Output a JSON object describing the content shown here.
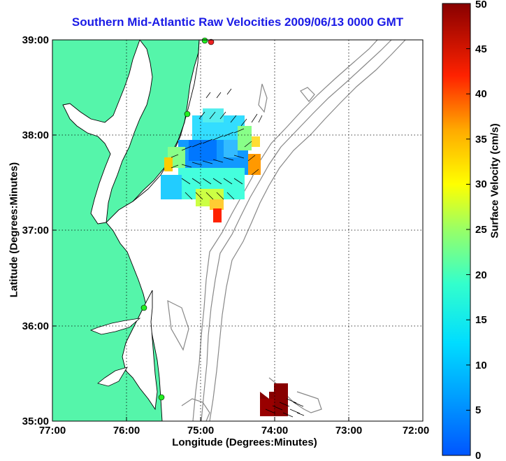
{
  "title": "Southern Mid-Atlantic Raw Velocities 2009/06/13 0000 GMT",
  "axes": {
    "xlabel": "Longitude (Degrees:Minutes)",
    "ylabel": "Latitude (Degrees:Minutes)",
    "xticks": [
      "77:00",
      "76:00",
      "75:00",
      "74:00",
      "73:00",
      "72:00"
    ],
    "yticks": [
      "39:00",
      "38:00",
      "37:00",
      "36:00",
      "35:00"
    ],
    "grid": "dotted"
  },
  "colorbar": {
    "label": "Surface Velocity (cm/s)",
    "range": [
      0,
      50
    ],
    "ticks": [
      "0",
      "5",
      "10",
      "15",
      "20",
      "25",
      "30",
      "35",
      "40",
      "45",
      "50"
    ],
    "colormap": "jet"
  },
  "colors": {
    "land": "#55f5aa",
    "coastline": "#000000",
    "bathymetry": "#888888",
    "title": "#1a1ae6",
    "station_marker": "#22ee22",
    "station_marker_red": "#ee2222"
  }
}
